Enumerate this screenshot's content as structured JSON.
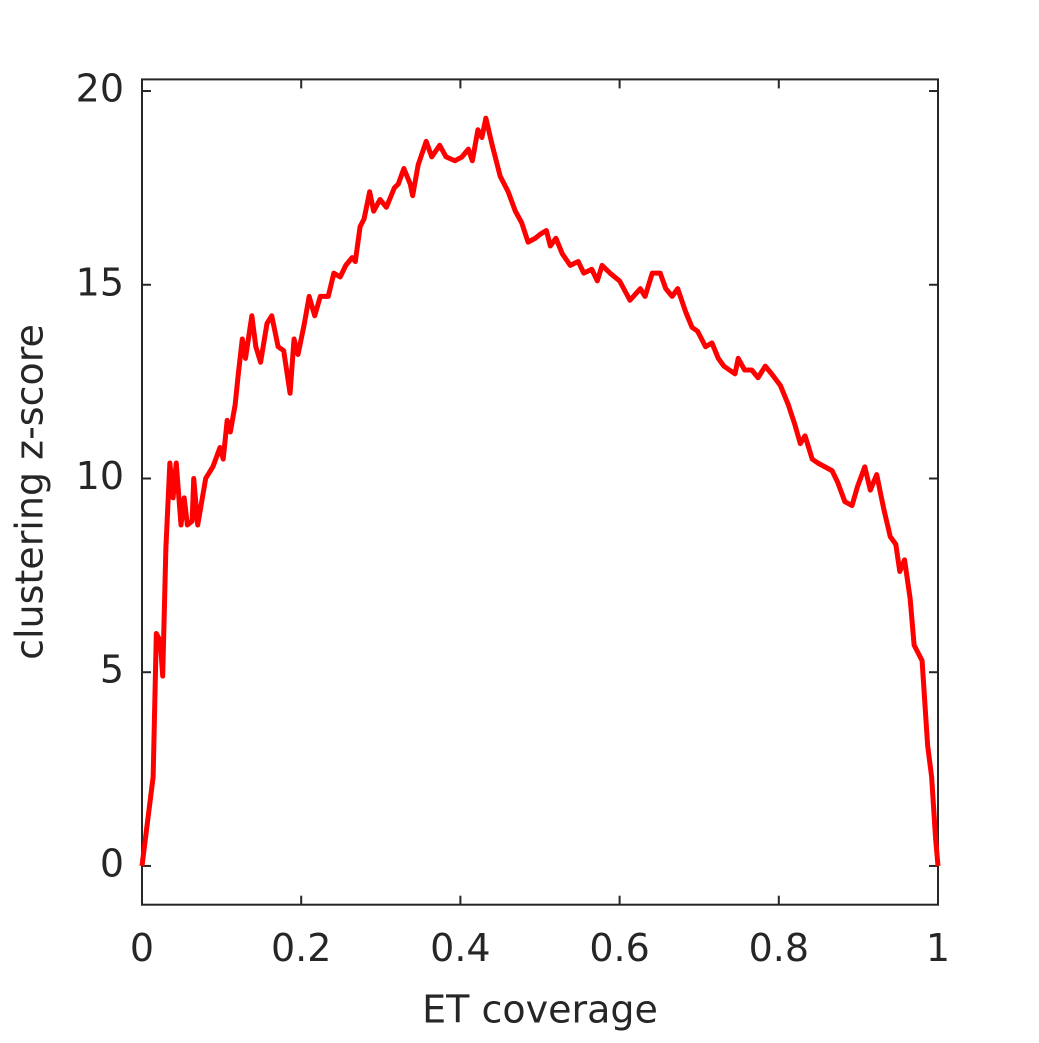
{
  "chart_data": {
    "type": "line",
    "xlabel": "ET coverage",
    "ylabel": "clustering z-score",
    "xlim": [
      0,
      1
    ],
    "ylim": [
      -1,
      20.3
    ],
    "xticks": [
      0,
      0.2,
      0.4,
      0.6,
      0.8,
      1
    ],
    "yticks": [
      0,
      5,
      10,
      15,
      20
    ],
    "grid": false,
    "x": [
      0,
      0.014,
      0.018,
      0.023,
      0.026,
      0.03,
      0.035,
      0.039,
      0.043,
      0.049,
      0.053,
      0.057,
      0.063,
      0.065,
      0.07,
      0.08,
      0.089,
      0.098,
      0.102,
      0.107,
      0.111,
      0.117,
      0.121,
      0.126,
      0.13,
      0.138,
      0.143,
      0.149,
      0.157,
      0.163,
      0.171,
      0.178,
      0.186,
      0.191,
      0.196,
      0.204,
      0.21,
      0.217,
      0.224,
      0.234,
      0.241,
      0.249,
      0.256,
      0.264,
      0.268,
      0.274,
      0.279,
      0.286,
      0.291,
      0.299,
      0.307,
      0.317,
      0.322,
      0.329,
      0.337,
      0.34,
      0.347,
      0.357,
      0.364,
      0.374,
      0.382,
      0.393,
      0.402,
      0.41,
      0.415,
      0.422,
      0.427,
      0.432,
      0.44,
      0.45,
      0.46,
      0.469,
      0.477,
      0.485,
      0.494,
      0.5,
      0.508,
      0.513,
      0.52,
      0.528,
      0.538,
      0.548,
      0.555,
      0.565,
      0.572,
      0.578,
      0.588,
      0.6,
      0.613,
      0.626,
      0.632,
      0.641,
      0.651,
      0.658,
      0.666,
      0.673,
      0.683,
      0.691,
      0.698,
      0.708,
      0.716,
      0.724,
      0.731,
      0.745,
      0.749,
      0.757,
      0.766,
      0.774,
      0.783,
      0.791,
      0.802,
      0.812,
      0.82,
      0.827,
      0.833,
      0.842,
      0.849,
      0.858,
      0.867,
      0.874,
      0.883,
      0.892,
      0.899,
      0.908,
      0.915,
      0.923,
      0.932,
      0.94,
      0.947,
      0.952,
      0.958,
      0.965,
      0.97,
      0.975,
      0.98,
      0.987,
      0.992,
      0.997,
      1
    ],
    "series": [
      {
        "color": "#ff0000",
        "values": [
          0,
          2.3,
          6.0,
          5.8,
          4.9,
          8.2,
          10.4,
          9.5,
          10.4,
          8.8,
          9.5,
          8.8,
          8.9,
          10.0,
          8.8,
          10.0,
          10.3,
          10.8,
          10.5,
          11.5,
          11.2,
          11.9,
          12.7,
          13.6,
          13.1,
          14.2,
          13.4,
          13.0,
          14.0,
          14.2,
          13.4,
          13.3,
          12.2,
          13.6,
          13.2,
          14.0,
          14.7,
          14.2,
          14.7,
          14.7,
          15.3,
          15.2,
          15.5,
          15.7,
          15.6,
          16.5,
          16.7,
          17.4,
          16.9,
          17.2,
          17.0,
          17.5,
          17.6,
          18.0,
          17.6,
          17.3,
          18.1,
          18.7,
          18.3,
          18.6,
          18.3,
          18.2,
          18.3,
          18.5,
          18.2,
          19.0,
          18.8,
          19.3,
          18.6,
          17.8,
          17.4,
          16.9,
          16.6,
          16.1,
          16.2,
          16.3,
          16.4,
          16.0,
          16.2,
          15.8,
          15.5,
          15.6,
          15.3,
          15.4,
          15.1,
          15.5,
          15.3,
          15.1,
          14.6,
          14.9,
          14.7,
          15.3,
          15.3,
          14.9,
          14.7,
          14.9,
          14.3,
          13.9,
          13.8,
          13.4,
          13.5,
          13.1,
          12.9,
          12.7,
          13.1,
          12.8,
          12.8,
          12.6,
          12.9,
          12.7,
          12.4,
          11.9,
          11.4,
          10.9,
          11.1,
          10.5,
          10.4,
          10.3,
          10.2,
          9.9,
          9.4,
          9.3,
          9.8,
          10.3,
          9.7,
          10.1,
          9.2,
          8.5,
          8.3,
          7.6,
          7.9,
          6.9,
          5.7,
          5.5,
          5.3,
          3.1,
          2.3,
          0.7,
          0
        ]
      }
    ]
  }
}
